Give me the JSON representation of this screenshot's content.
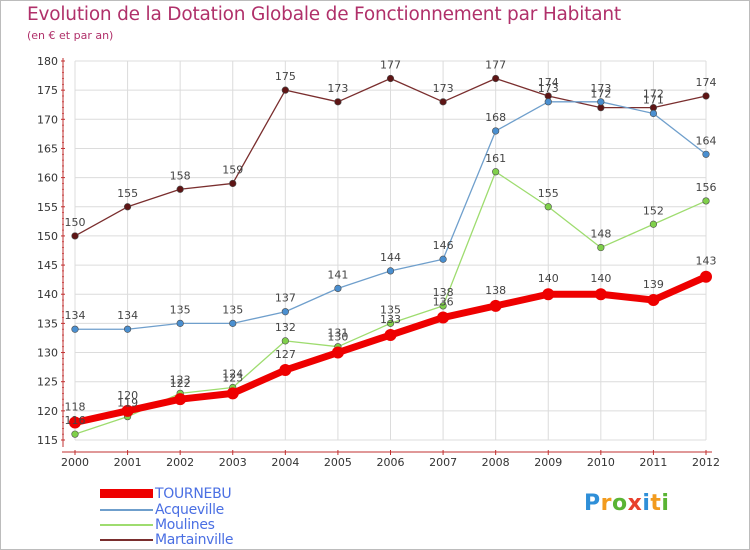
{
  "header": {
    "title": "Evolution de la Dotation Globale de Fonctionnement par Habitant",
    "subtitle": "(en € et par an)"
  },
  "brand": {
    "text": "Proxiti",
    "letters": [
      "P",
      "r",
      "o",
      "x",
      "i",
      "t",
      "i"
    ],
    "colors": [
      "#2f8fd8",
      "#f29b1e",
      "#5ab434",
      "#e8402c",
      "#2f8fd8",
      "#f29b1e",
      "#5ab434"
    ]
  },
  "chart_data": {
    "type": "line",
    "title": "Evolution de la Dotation Globale de Fonctionnement par Habitant",
    "subtitle": "(en € et par an)",
    "xlabel": "",
    "ylabel": "",
    "x": [
      "2000",
      "2001",
      "2002",
      "2003",
      "2004",
      "2005",
      "2006",
      "2007",
      "2008",
      "2009",
      "2010",
      "2011",
      "2012"
    ],
    "ylim": [
      115,
      180
    ],
    "yticks": [
      115,
      120,
      125,
      130,
      135,
      140,
      145,
      150,
      155,
      160,
      165,
      170,
      175,
      180
    ],
    "grid": true,
    "legend_position": "bottom-left",
    "series": [
      {
        "name": "TOURNEBU",
        "color": "#ee0000",
        "marker_color": "#ee0000",
        "width": 7,
        "radius": 6,
        "label_dy": -12,
        "values": [
          118,
          120,
          122,
          123,
          127,
          130,
          133,
          136,
          138,
          140,
          140,
          139,
          143
        ]
      },
      {
        "name": "Acqueville",
        "color": "#6f9fcc",
        "marker_color": "#4a8fd0",
        "width": 1.3,
        "radius": 3.3,
        "label_dy": -10,
        "values": [
          134,
          134,
          135,
          135,
          137,
          141,
          144,
          146,
          168,
          173,
          173,
          171,
          164
        ]
      },
      {
        "name": "Moulines",
        "color": "#9edc6f",
        "marker_color": "#7fd04a",
        "width": 1.3,
        "radius": 3.3,
        "label_dy": -10,
        "values": [
          116,
          119,
          123,
          124,
          132,
          131,
          135,
          138,
          161,
          155,
          148,
          152,
          156
        ]
      },
      {
        "name": "Martainville",
        "color": "#7a2e2e",
        "marker_color": "#5e1515",
        "width": 1.3,
        "radius": 3.3,
        "label_dy": -10,
        "values": [
          150,
          155,
          158,
          159,
          175,
          173,
          177,
          173,
          177,
          174,
          172,
          172,
          174
        ]
      }
    ]
  }
}
